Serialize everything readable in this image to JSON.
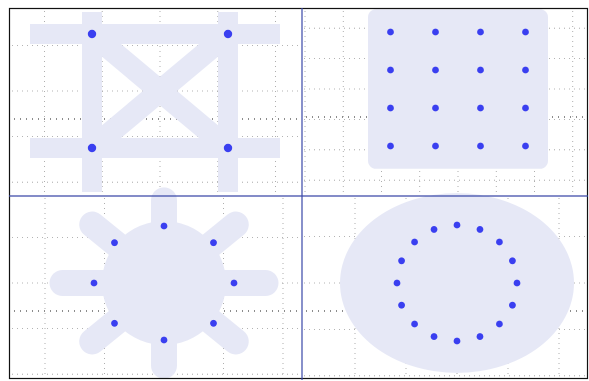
{
  "colors": {
    "background": "#ffffff",
    "frame": "#111111",
    "divider": "#3a48a8",
    "grid": "#9a9a9a",
    "haze": "#e6e8f6",
    "dot": "#3a3ff0"
  },
  "panels": [
    {
      "name": "square-4",
      "shape": "four-points-square",
      "points": [
        [
          -1,
          1
        ],
        [
          1,
          1
        ],
        [
          -1,
          -1
        ],
        [
          1,
          -1
        ]
      ]
    },
    {
      "name": "grid-16",
      "shape": "square-grid",
      "points": [
        [
          -1.5,
          1.5
        ],
        [
          -0.5,
          1.5
        ],
        [
          0.5,
          1.5
        ],
        [
          1.5,
          1.5
        ],
        [
          -1.5,
          0.5
        ],
        [
          -0.5,
          0.5
        ],
        [
          0.5,
          0.5
        ],
        [
          1.5,
          0.5
        ],
        [
          -1.5,
          -0.5
        ],
        [
          -0.5,
          -0.5
        ],
        [
          0.5,
          -0.5
        ],
        [
          1.5,
          -0.5
        ],
        [
          -1.5,
          -1.5
        ],
        [
          -0.5,
          -1.5
        ],
        [
          0.5,
          -1.5
        ],
        [
          1.5,
          -1.5
        ]
      ]
    },
    {
      "name": "ring-8",
      "shape": "circular",
      "count": 8,
      "radius": 1
    },
    {
      "name": "ring-16",
      "shape": "circular",
      "count": 16,
      "radius": 1
    }
  ]
}
